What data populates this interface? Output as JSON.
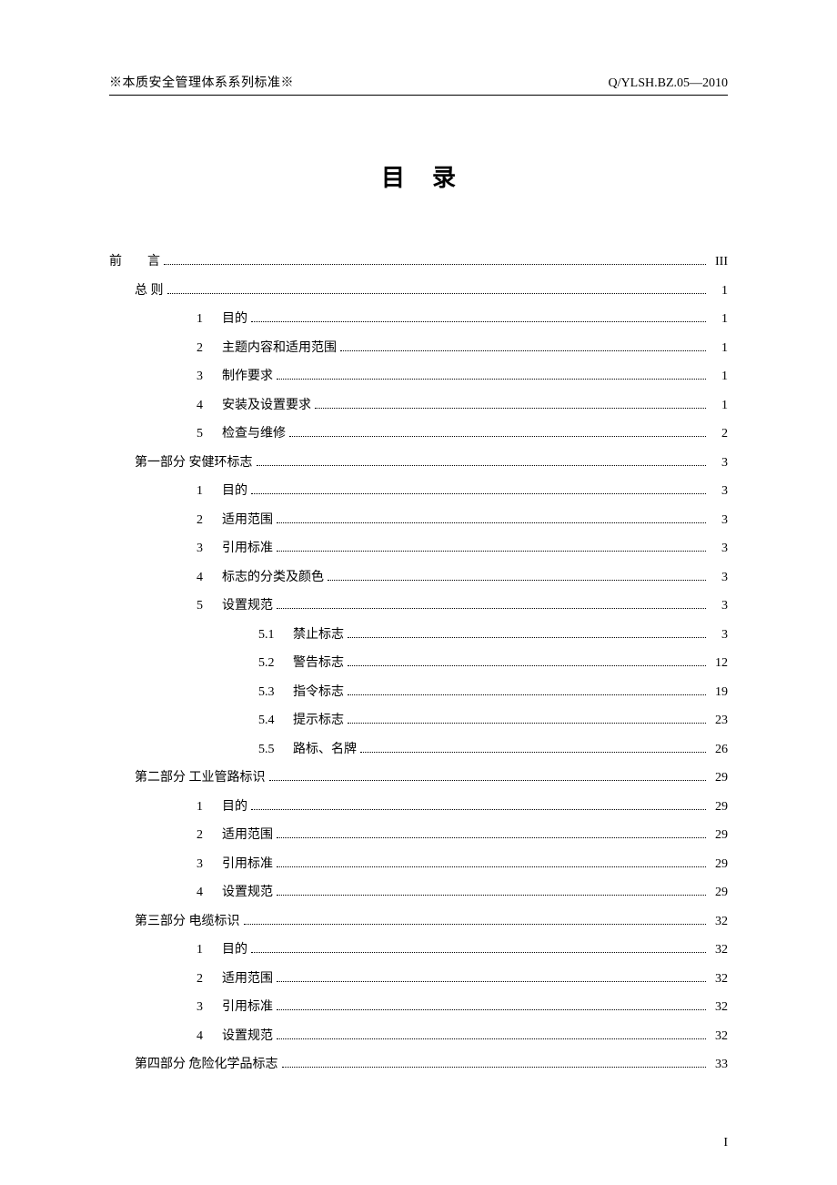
{
  "header": {
    "left": "※本质安全管理体系系列标准※",
    "right": "Q/YLSH.BZ.05—2010"
  },
  "title": "目录",
  "toc": [
    {
      "indent": 0,
      "num": "",
      "label": "前　　言",
      "page": "III",
      "spaced": false
    },
    {
      "indent": 1,
      "num": "",
      "label": "总  则",
      "page": "1",
      "spaced": false
    },
    {
      "indent": 2,
      "num": "1",
      "label": "目的",
      "page": "1"
    },
    {
      "indent": 2,
      "num": "2",
      "label": "主题内容和适用范围",
      "page": "1"
    },
    {
      "indent": 2,
      "num": "3",
      "label": "制作要求",
      "page": "1"
    },
    {
      "indent": 2,
      "num": "4",
      "label": "安装及设置要求",
      "page": "1"
    },
    {
      "indent": 2,
      "num": "5",
      "label": "检查与维修",
      "page": "2"
    },
    {
      "indent": 1,
      "num": "",
      "label": "第一部分  安健环标志",
      "page": "3"
    },
    {
      "indent": 2,
      "num": "1",
      "label": "目的",
      "page": "3"
    },
    {
      "indent": 2,
      "num": "2",
      "label": "适用范围",
      "page": "3"
    },
    {
      "indent": 2,
      "num": "3",
      "label": "引用标准",
      "page": "3"
    },
    {
      "indent": 2,
      "num": "4",
      "label": "标志的分类及颜色",
      "page": "3"
    },
    {
      "indent": 2,
      "num": "5",
      "label": "设置规范",
      "page": "3"
    },
    {
      "indent": 3,
      "num": "5.1",
      "label": "禁止标志",
      "page": "3"
    },
    {
      "indent": 3,
      "num": "5.2",
      "label": "警告标志",
      "page": "12"
    },
    {
      "indent": 3,
      "num": "5.3",
      "label": "指令标志",
      "page": "19"
    },
    {
      "indent": 3,
      "num": "5.4",
      "label": "提示标志",
      "page": "23"
    },
    {
      "indent": 3,
      "num": "5.5",
      "label": "路标、名牌",
      "page": "26"
    },
    {
      "indent": 1,
      "num": "",
      "label": "第二部分  工业管路标识",
      "page": "29"
    },
    {
      "indent": 2,
      "num": "1",
      "label": "目的",
      "page": "29"
    },
    {
      "indent": 2,
      "num": "2",
      "label": "适用范围",
      "page": "29"
    },
    {
      "indent": 2,
      "num": "3",
      "label": "引用标准",
      "page": "29"
    },
    {
      "indent": 2,
      "num": "4",
      "label": "设置规范",
      "page": "29"
    },
    {
      "indent": 1,
      "num": "",
      "label": "第三部分  电缆标识",
      "page": "32"
    },
    {
      "indent": 2,
      "num": "1",
      "label": "目的",
      "page": "32"
    },
    {
      "indent": 2,
      "num": "2",
      "label": "适用范围",
      "page": "32"
    },
    {
      "indent": 2,
      "num": "3",
      "label": "引用标准",
      "page": "32"
    },
    {
      "indent": 2,
      "num": "4",
      "label": "设置规范",
      "page": "32"
    },
    {
      "indent": 1,
      "num": "",
      "label": "第四部分  危险化学品标志",
      "page": "33"
    }
  ],
  "footerPage": "I",
  "colors": {
    "text": "#000000",
    "background": "#ffffff"
  },
  "typography": {
    "body_font": "SimSun",
    "number_font": "Times New Roman",
    "title_fontsize_pt": 20,
    "body_fontsize_pt": 11
  }
}
